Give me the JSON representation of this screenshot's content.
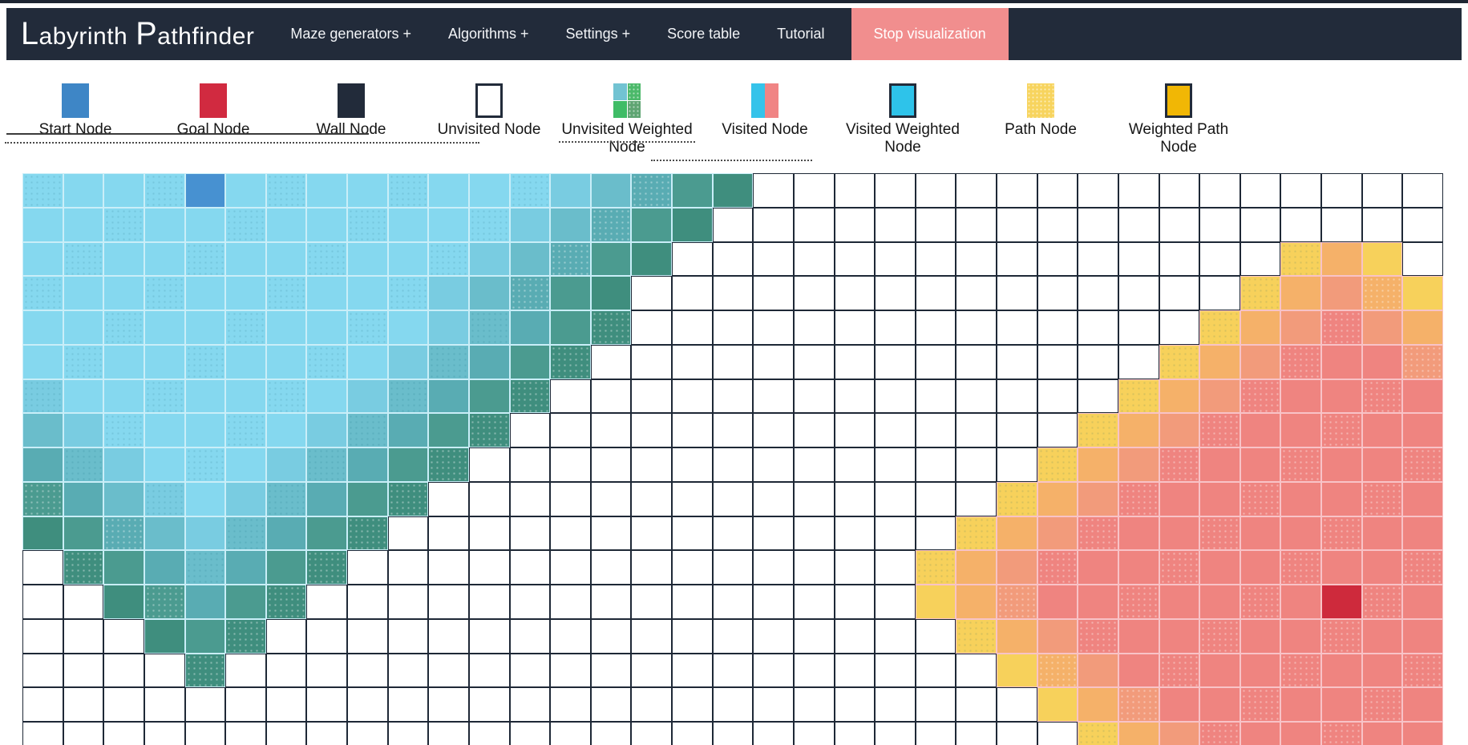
{
  "navbar": {
    "brand": {
      "word1": "Labyrinth",
      "word2": "Pathfinder"
    },
    "items": [
      {
        "label": "Maze generators +"
      },
      {
        "label": "Algorithms +"
      },
      {
        "label": "Settings +"
      },
      {
        "label": "Score table"
      },
      {
        "label": "Tutorial"
      }
    ],
    "stop_button": {
      "label": "Stop visualization"
    }
  },
  "legend": {
    "items": [
      {
        "label": "Start Node",
        "swatch": "start"
      },
      {
        "label": "Goal Node",
        "swatch": "goal"
      },
      {
        "label": "Wall Node",
        "swatch": "wall"
      },
      {
        "label": "Unvisited Node",
        "swatch": "unvisited"
      },
      {
        "label": "Unvisited Weighted Node",
        "swatch": "unvisited-weighted"
      },
      {
        "label": "Visited Node",
        "swatch": "visited"
      },
      {
        "label": "Visited Weighted Node",
        "swatch": "visited-weighted"
      },
      {
        "label": "Path Node",
        "swatch": "path"
      },
      {
        "label": "Weighted Path Node",
        "swatch": "weighted-path"
      }
    ]
  },
  "colors": {
    "navbar_bg": "#222B3A",
    "stop_button_bg": "#F18E8E",
    "start_node": "#4791D1",
    "goal_node": "#CE2A3C",
    "wall_node": "#222B3A",
    "visited_blue_levels": [
      "#85D8EF",
      "#79CCE1",
      "#6ABDCB",
      "#59ACB3",
      "#4B9B90",
      "#3F8E7E"
    ],
    "frontier_yellow": "#F7D15B",
    "visited_orange": "#F5B169",
    "visited_light_salmon": "#F29B7B",
    "visited_salmon": "#EF8480",
    "gridline_unvisited": "#1E2836",
    "gridline_blue_wave": "#C9EEF8",
    "gridline_red_wave": "#F8C3C7"
  },
  "grid": {
    "rows": 17,
    "cols": 35,
    "start": {
      "row": 0,
      "col": 4
    },
    "goal": {
      "row": 12,
      "col": 32
    },
    "token_meaning": {
      ".": "unvisited",
      "S": "start-node",
      "G": "goal-node",
      "0": "visited-blue-lightest",
      "1": "visited-blue-light",
      "2": "visited-blue-medium-light",
      "3": "visited-blue-medium",
      "4": "visited-blue-dark",
      "5": "visited-blue-frontier-darkest",
      "Y": "visited-red-frontier-yellow",
      "O": "visited-red-orange",
      "P": "visited-red-light-salmon",
      "R": "visited-red-salmon"
    },
    "cells": [
      "0000S0000000012345.................",
      "00000000000012345..................",
      "0000000000012345...............YOY.",
      "000000000012345...............YOPOY",
      "000000000012345..............YOPRPO",
      "00000000012345..............YOPRRRP",
      "1000000012345..............YOPRRRRR",
      "210000012345..............YOPRRRRRR",
      "32100012345..............YOPRRRRRRR",
      "4321012345..............YOPRRRRRRRR",
      "543212345..............YOPRRRRRRRRR",
      ".5432345..............YOPRRRRRRRRRR",
      "..54345...............YOPRRRRRRRGRR",
      "...545.................YOPRRRRRRRRR",
      "....5...................YOPRRRRRRRR",
      ".........................YOPRRRRRRR",
      "..........................YOPRRRRRR"
    ]
  }
}
